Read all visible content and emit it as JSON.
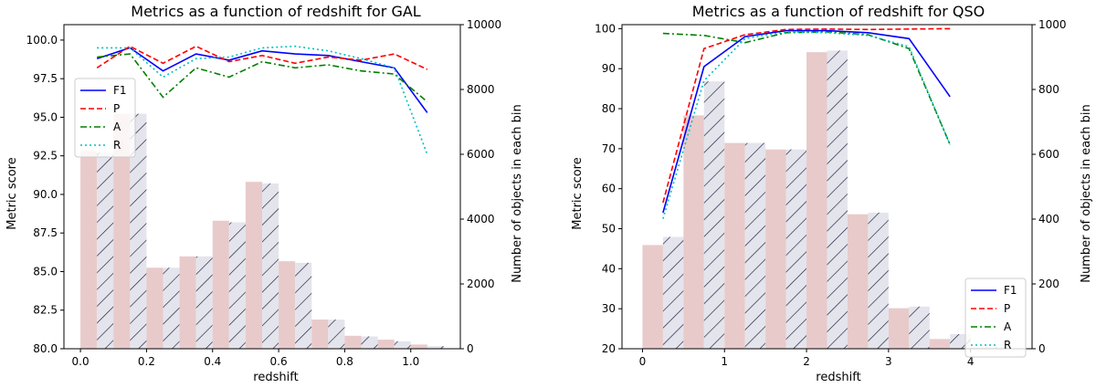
{
  "chart_data": [
    {
      "type": "bar+line",
      "title": "Metrics as a function of redshift for GAL",
      "xlabel": "redshift",
      "ylabel": "Metric score",
      "y2label": "Number of objects in each bin",
      "xlim": [
        -0.05,
        1.15
      ],
      "ylim": [
        80.0,
        101.0
      ],
      "y2lim": [
        0,
        10000
      ],
      "xticks": [
        "0.0",
        "0.2",
        "0.4",
        "0.6",
        "0.8",
        "1.0"
      ],
      "yticks": [
        "80.0",
        "82.5",
        "85.0",
        "87.5",
        "90.0",
        "92.5",
        "95.0",
        "97.5",
        "100.0"
      ],
      "y2ticks": [
        "0",
        "2000",
        "4000",
        "6000",
        "8000",
        "10000"
      ],
      "legend_position": "upper-left",
      "bins": {
        "centers": [
          0.05,
          0.15,
          0.25,
          0.35,
          0.45,
          0.55,
          0.65,
          0.75,
          0.85,
          0.95,
          1.05
        ],
        "width": 0.1,
        "plain_counts": [
          6100,
          7250,
          2500,
          2850,
          3950,
          5150,
          2700,
          900,
          400,
          280,
          130
        ],
        "hatched_counts": [
          6050,
          7250,
          2500,
          2850,
          3900,
          5100,
          2650,
          900,
          380,
          230,
          80
        ]
      },
      "series": [
        {
          "name": "F1",
          "color": "#0000ff",
          "dash": "solid",
          "x": [
            0.05,
            0.15,
            0.25,
            0.35,
            0.45,
            0.55,
            0.65,
            0.75,
            0.85,
            0.95,
            1.05
          ],
          "values": [
            98.8,
            99.5,
            98.0,
            99.1,
            98.7,
            99.3,
            99.1,
            99.0,
            98.6,
            98.2,
            95.3
          ]
        },
        {
          "name": "P",
          "color": "#ff0000",
          "dash": "dashed",
          "x": [
            0.05,
            0.15,
            0.25,
            0.35,
            0.45,
            0.55,
            0.65,
            0.75,
            0.85,
            0.95,
            1.05
          ],
          "values": [
            98.2,
            99.6,
            98.5,
            99.6,
            98.6,
            99.0,
            98.5,
            98.9,
            98.7,
            99.1,
            98.1
          ]
        },
        {
          "name": "A",
          "color": "#008000",
          "dash": "dashdot",
          "x": [
            0.05,
            0.15,
            0.25,
            0.35,
            0.45,
            0.55,
            0.65,
            0.75,
            0.85,
            0.95,
            1.05
          ],
          "values": [
            98.9,
            99.1,
            96.3,
            98.2,
            97.6,
            98.6,
            98.2,
            98.4,
            98.0,
            97.8,
            96.0
          ]
        },
        {
          "name": "R",
          "color": "#00bfbf",
          "dash": "dotted",
          "x": [
            0.05,
            0.15,
            0.25,
            0.35,
            0.45,
            0.55,
            0.65,
            0.75,
            0.85,
            0.95,
            1.05
          ],
          "values": [
            99.5,
            99.5,
            97.6,
            98.8,
            98.9,
            99.5,
            99.6,
            99.3,
            98.8,
            98.2,
            92.6
          ]
        }
      ]
    },
    {
      "type": "bar+line",
      "title": "Metrics as a function of redshift for QSO",
      "xlabel": "redshift",
      "ylabel": "Metric score",
      "y2label": "Number of objects in each bin",
      "xlim": [
        -0.25,
        4.75
      ],
      "ylim": [
        20,
        101
      ],
      "y2lim": [
        0,
        1000
      ],
      "xticks": [
        "0",
        "1",
        "2",
        "3",
        "4"
      ],
      "yticks": [
        "20",
        "30",
        "40",
        "50",
        "60",
        "70",
        "80",
        "90",
        "100"
      ],
      "y2ticks": [
        "0",
        "200",
        "400",
        "600",
        "800",
        "1000"
      ],
      "legend_position": "lower-right",
      "bins": {
        "centers": [
          0.25,
          0.75,
          1.25,
          1.75,
          2.25,
          2.75,
          3.25,
          3.75,
          4.25
        ],
        "width": 0.5,
        "plain_counts": [
          320,
          720,
          635,
          615,
          915,
          415,
          125,
          30,
          5
        ],
        "hatched_counts": [
          345,
          825,
          635,
          615,
          920,
          420,
          130,
          45,
          5
        ]
      },
      "series": [
        {
          "name": "F1",
          "color": "#0000ff",
          "dash": "solid",
          "x": [
            0.25,
            0.75,
            1.25,
            1.75,
            2.25,
            2.75,
            3.25,
            3.75
          ],
          "values": [
            54.0,
            90.5,
            98.0,
            99.5,
            99.5,
            99.0,
            97.5,
            83.0
          ]
        },
        {
          "name": "P",
          "color": "#ff0000",
          "dash": "dashed",
          "x": [
            0.25,
            0.75,
            1.25,
            1.75,
            2.25,
            2.75,
            3.25,
            3.75
          ],
          "values": [
            56.5,
            95.0,
            98.5,
            99.8,
            99.9,
            99.8,
            99.9,
            100.0
          ]
        },
        {
          "name": "A",
          "color": "#008000",
          "dash": "dashdot",
          "x": [
            0.25,
            0.75,
            1.25,
            1.75,
            2.25,
            2.75,
            3.25,
            3.75
          ],
          "values": [
            98.8,
            98.3,
            96.5,
            99.0,
            99.2,
            98.5,
            95.0,
            71.0
          ]
        },
        {
          "name": "R",
          "color": "#00bfbf",
          "dash": "dotted",
          "x": [
            0.25,
            0.75,
            1.25,
            1.75,
            2.25,
            2.75,
            3.25,
            3.75
          ],
          "values": [
            52.5,
            87.0,
            97.5,
            99.2,
            99.0,
            98.3,
            95.5,
            71.0
          ]
        }
      ]
    }
  ],
  "colors": {
    "plain_bar": "#e8caca",
    "hatched_bar_fill": "#e4e4ec",
    "hatch_stroke": "#1a1a3a",
    "axis": "#000000"
  }
}
